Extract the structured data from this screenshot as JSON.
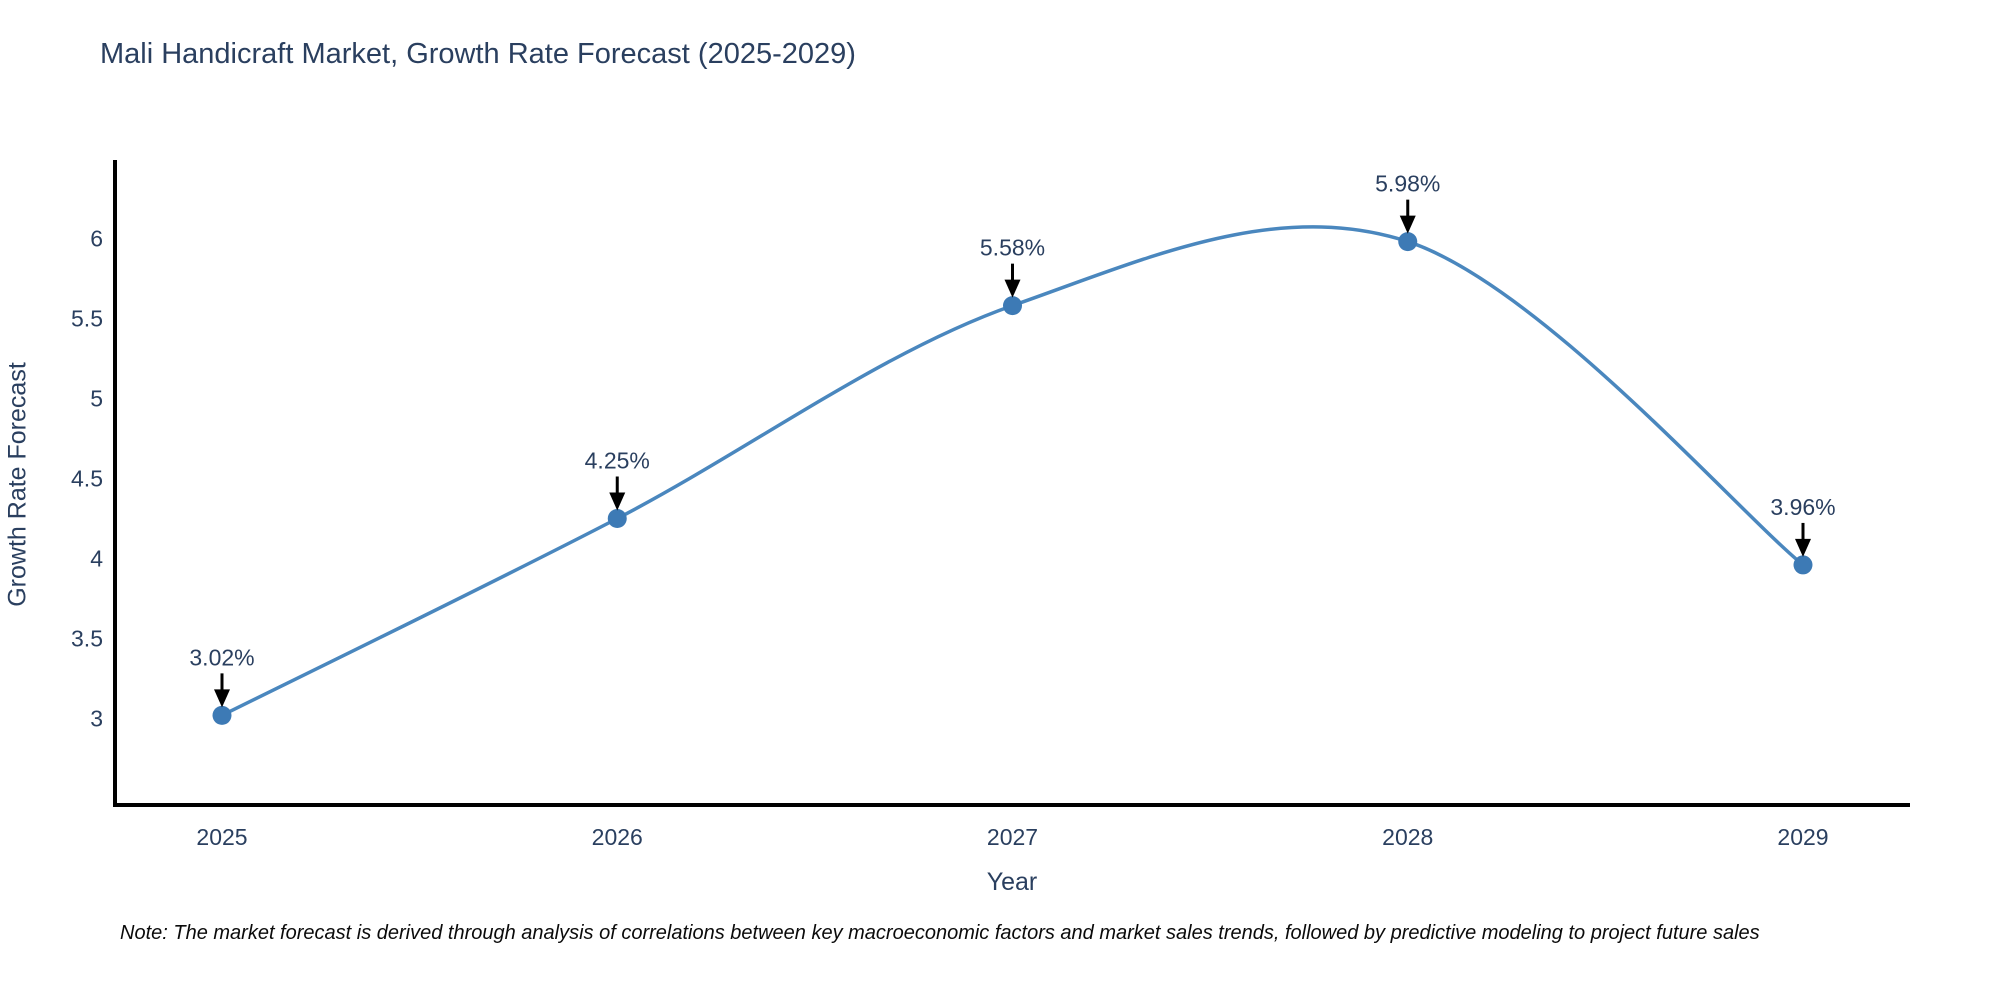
{
  "title": "Mali Handicraft Market, Growth Rate Forecast (2025-2029)",
  "footnote": "Note: The market forecast is derived through analysis of correlations between key macroeconomic factors and market sales trends, followed by predictive modeling to project future sales",
  "colors": {
    "line": "#4a87be",
    "marker": "#3d7ab5",
    "axis": "#000000",
    "text": "#2a3f5f",
    "arrow": "#000000"
  },
  "chart_data": {
    "type": "line",
    "title": "Mali Handicraft Market, Growth Rate Forecast (2025-2029)",
    "xlabel": "Year",
    "ylabel": "Growth Rate Forecast",
    "x": [
      2025,
      2026,
      2027,
      2028,
      2029
    ],
    "y": [
      3.02,
      4.25,
      5.58,
      5.98,
      3.96
    ],
    "point_labels": [
      "3.02%",
      "4.25%",
      "5.58%",
      "5.98%",
      "3.96%"
    ],
    "yticks": [
      3,
      3.5,
      4,
      4.5,
      5,
      5.5,
      6
    ],
    "ylim": [
      2.46,
      6.49
    ],
    "line_shape": "spline",
    "grid": false,
    "legend": false
  }
}
